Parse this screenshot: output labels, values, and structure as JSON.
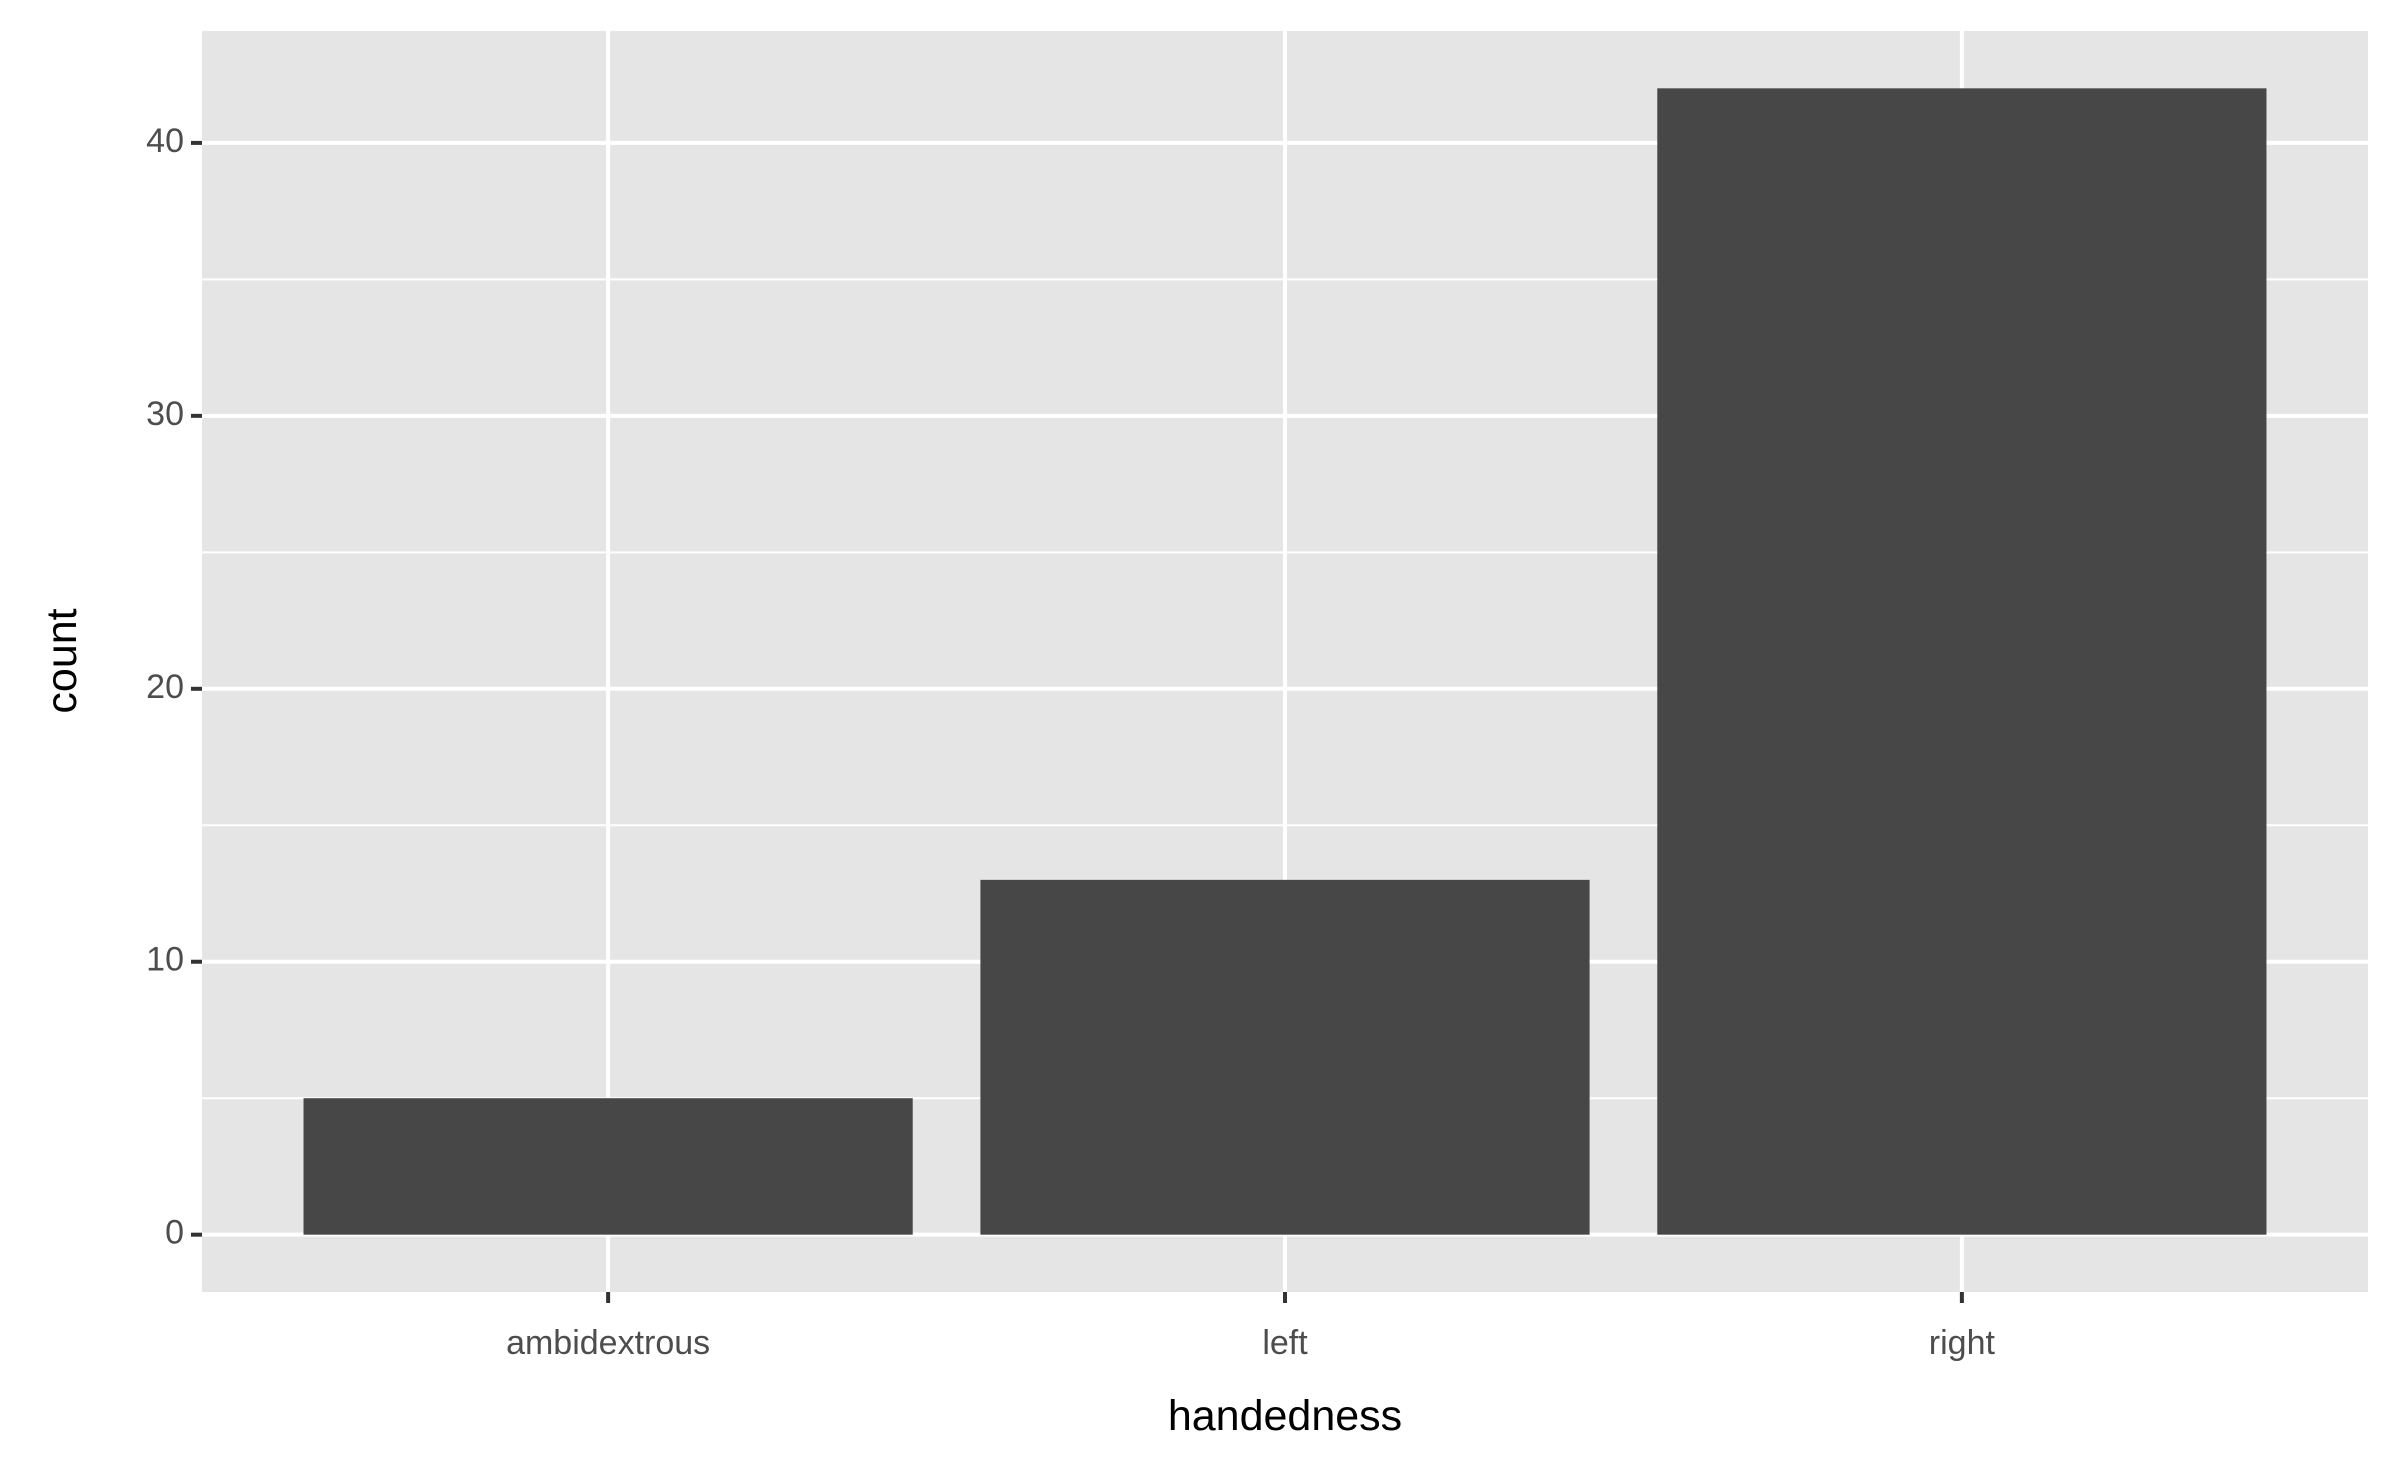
{
  "chart_data": {
    "type": "bar",
    "x_label": "handedness",
    "y_label": "count",
    "categories": [
      "ambidextrous",
      "left",
      "right"
    ],
    "values": [
      5,
      13,
      42
    ],
    "color": "#474747",
    "ylim": [
      -2.1,
      44.1
    ],
    "yticks": [
      0,
      10,
      20,
      30,
      40
    ],
    "y_minor_ticks": [
      5,
      15,
      25,
      35
    ],
    "grid": true
  }
}
